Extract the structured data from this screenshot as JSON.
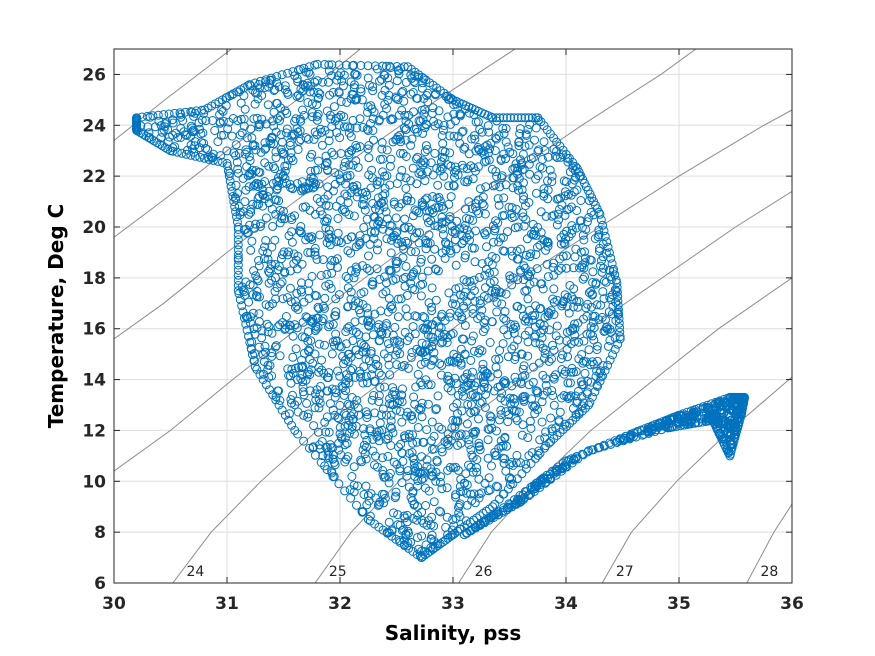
{
  "chart_data": {
    "type": "scatter",
    "title": "",
    "xlabel": "Salinity, pss",
    "ylabel": "Temperature, Deg C",
    "xlim": [
      30,
      36
    ],
    "ylim": [
      6,
      27
    ],
    "xticks": [
      30,
      31,
      32,
      33,
      34,
      35,
      36
    ],
    "yticks": [
      6,
      8,
      10,
      12,
      14,
      16,
      18,
      20,
      22,
      24,
      26
    ],
    "grid": true,
    "marker": "open-circle",
    "marker_color": "#0072BD",
    "contour_color": "#8c8c8c",
    "density_contours": [
      {
        "label": "24",
        "label_at": [
          30.72,
          6.2
        ],
        "points": [
          [
            30.52,
            6
          ],
          [
            30.86,
            8
          ],
          [
            31.3,
            10
          ],
          [
            31.8,
            12
          ],
          [
            32.4,
            14
          ],
          [
            33.0,
            16
          ],
          [
            33.6,
            18
          ],
          [
            34.3,
            20
          ],
          [
            35.0,
            22
          ],
          [
            35.75,
            24
          ],
          [
            36.0,
            24.6
          ]
        ]
      },
      {
        "label": "25",
        "label_at": [
          31.98,
          6.2
        ],
        "points": [
          [
            31.78,
            6
          ],
          [
            32.1,
            8
          ],
          [
            32.52,
            10
          ],
          [
            33.0,
            12
          ],
          [
            33.6,
            14
          ],
          [
            34.2,
            16
          ],
          [
            34.85,
            18
          ],
          [
            35.5,
            20
          ],
          [
            36.0,
            21.4
          ]
        ]
      },
      {
        "label": "26",
        "label_at": [
          33.27,
          6.2
        ],
        "points": [
          [
            33.05,
            6
          ],
          [
            33.34,
            8
          ],
          [
            33.75,
            10
          ],
          [
            34.22,
            12
          ],
          [
            34.78,
            14
          ],
          [
            35.35,
            16
          ],
          [
            36.0,
            18
          ]
        ]
      },
      {
        "label": "27",
        "label_at": [
          34.52,
          6.2
        ],
        "points": [
          [
            34.32,
            6
          ],
          [
            34.58,
            8
          ],
          [
            34.98,
            10
          ],
          [
            35.45,
            12
          ],
          [
            36.0,
            14.1
          ]
        ]
      },
      {
        "label": "28",
        "label_at": [
          35.8,
          6.2
        ],
        "points": [
          [
            35.6,
            6
          ],
          [
            35.84,
            8
          ],
          [
            36.0,
            9.1
          ]
        ]
      },
      {
        "label": "",
        "points": [
          [
            30.0,
            10.4
          ],
          [
            30.5,
            12
          ],
          [
            31.05,
            14
          ],
          [
            31.62,
            16
          ],
          [
            32.22,
            18
          ],
          [
            32.84,
            20
          ],
          [
            33.48,
            22
          ],
          [
            34.14,
            24
          ],
          [
            34.84,
            26
          ],
          [
            35.15,
            27
          ]
        ]
      },
      {
        "label": "",
        "points": [
          [
            30.0,
            15.6
          ],
          [
            30.44,
            17
          ],
          [
            31.0,
            19
          ],
          [
            31.6,
            21
          ],
          [
            32.22,
            23
          ],
          [
            32.86,
            25
          ],
          [
            33.55,
            27
          ]
        ]
      },
      {
        "label": "",
        "points": [
          [
            30.0,
            19.6
          ],
          [
            30.42,
            21
          ],
          [
            31.0,
            23
          ],
          [
            31.62,
            25
          ],
          [
            32.18,
            27
          ]
        ]
      },
      {
        "label": "",
        "points": [
          [
            30.0,
            23.4
          ],
          [
            30.45,
            25
          ],
          [
            31.04,
            27
          ]
        ]
      }
    ],
    "series": [
      {
        "regions": [
          {
            "polygon": [
              [
                30.2,
                24.3
              ],
              [
                30.8,
                24.6
              ],
              [
                31.2,
                25.6
              ],
              [
                31.8,
                26.4
              ],
              [
                32.6,
                26.3
              ],
              [
                33.0,
                25.0
              ],
              [
                33.35,
                24.3
              ],
              [
                33.75,
                24.3
              ],
              [
                34.1,
                22.3
              ],
              [
                34.3,
                20.5
              ],
              [
                34.45,
                17.8
              ],
              [
                34.48,
                15.6
              ],
              [
                34.2,
                13.0
              ],
              [
                33.85,
                11.5
              ],
              [
                33.35,
                9.0
              ],
              [
                33.0,
                7.9
              ],
              [
                32.72,
                7.0
              ],
              [
                32.25,
                8.5
              ],
              [
                31.6,
                12.0
              ],
              [
                31.25,
                14.5
              ],
              [
                31.1,
                17.5
              ],
              [
                31.1,
                20.0
              ],
              [
                31.0,
                22.5
              ],
              [
                30.5,
                23.0
              ],
              [
                30.2,
                23.8
              ]
            ],
            "count": 2600
          },
          {
            "polygon": [
              [
                33.4,
                8.8
              ],
              [
                34.0,
                10.8
              ],
              [
                34.6,
                11.9
              ],
              [
                35.0,
                12.6
              ],
              [
                35.45,
                13.3
              ],
              [
                35.58,
                13.3
              ],
              [
                35.55,
                12.6
              ],
              [
                35.45,
                11.0
              ],
              [
                35.3,
                12.4
              ],
              [
                34.9,
                12.1
              ],
              [
                34.2,
                11.2
              ],
              [
                33.6,
                9.2
              ],
              [
                33.1,
                7.9
              ]
            ],
            "count": 450
          }
        ]
      }
    ]
  }
}
